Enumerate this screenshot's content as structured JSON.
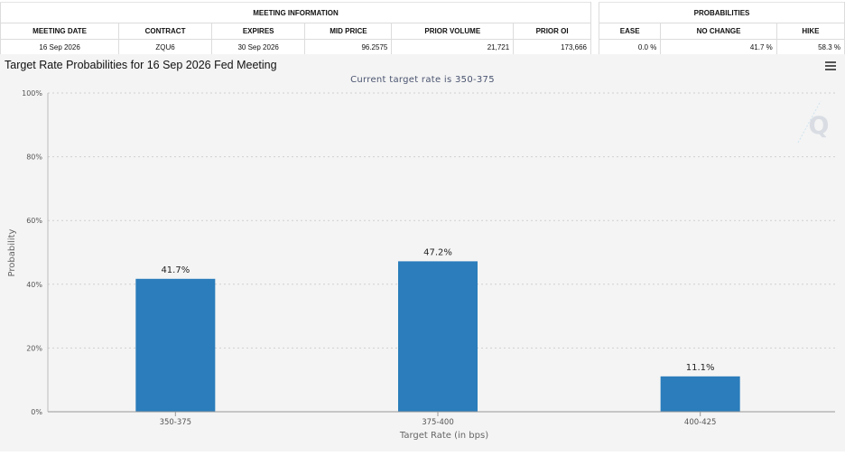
{
  "meeting_info": {
    "group_header": "MEETING INFORMATION",
    "columns": [
      "MEETING DATE",
      "CONTRACT",
      "EXPIRES",
      "MID PRICE",
      "PRIOR VOLUME",
      "PRIOR OI"
    ],
    "row": [
      "16 Sep 2026",
      "ZQU6",
      "30 Sep 2026",
      "96.2575",
      "21,721",
      "173,666"
    ]
  },
  "probabilities": {
    "group_header": "PROBABILITIES",
    "columns": [
      "EASE",
      "NO CHANGE",
      "HIKE"
    ],
    "row": [
      "0.0 %",
      "41.7 %",
      "58.3 %"
    ]
  },
  "chart_header": {
    "title": "Target Rate Probabilities for 16 Sep 2026 Fed Meeting",
    "subtitle": "Current target rate is 350-375",
    "menu_icon": "hamburger-menu-icon",
    "watermark": "Q"
  },
  "chart_data": {
    "type": "bar",
    "categories": [
      "350-375",
      "375-400",
      "400-425"
    ],
    "values": [
      41.7,
      47.2,
      11.1
    ],
    "data_labels": [
      "41.7%",
      "47.2%",
      "11.1%"
    ],
    "xlabel": "Target Rate (in bps)",
    "ylabel": "Probability",
    "ylim": [
      0,
      100
    ],
    "yticks": [
      0,
      20,
      40,
      60,
      80,
      100
    ],
    "ytick_labels": [
      "0%",
      "20%",
      "40%",
      "60%",
      "80%",
      "100%"
    ],
    "grid": true,
    "bar_color": "#2b7dbb"
  }
}
